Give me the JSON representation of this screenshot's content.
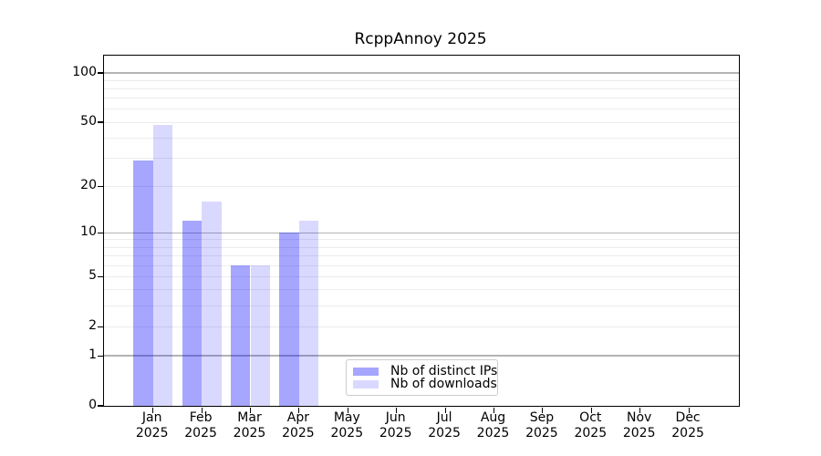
{
  "title": "RcppAnnoy 2025",
  "chart_data": {
    "type": "bar",
    "title": "RcppAnnoy 2025",
    "y_scale": "log1p",
    "ylim": [
      0,
      127.4
    ],
    "categories": [
      "Jan",
      "Feb",
      "Mar",
      "Apr",
      "May",
      "Jun",
      "Jul",
      "Aug",
      "Sep",
      "Oct",
      "Nov",
      "Dec"
    ],
    "category_year": "2025",
    "series": [
      {
        "name": "Nb of distinct IPs",
        "color": "rgba(0,0,255,0.35)",
        "values": [
          29,
          12,
          6,
          10,
          null,
          null,
          null,
          null,
          null,
          null,
          null,
          null
        ]
      },
      {
        "name": "Nb of downloads",
        "color": "rgba(0,0,255,0.15)",
        "values": [
          48,
          16,
          6,
          12,
          null,
          null,
          null,
          null,
          null,
          null,
          null,
          null
        ]
      }
    ],
    "y_axis": {
      "ticks": [
        0,
        1,
        2,
        5,
        10,
        20,
        50,
        100
      ],
      "major_gridlines": [
        1,
        10,
        100
      ],
      "minor_gridlines": [
        2,
        3,
        4,
        5,
        6,
        7,
        8,
        9,
        20,
        30,
        40,
        50,
        60,
        70,
        80,
        90
      ],
      "major_grid_color": "#b3b3b3",
      "minor_grid_color": "#ececec"
    },
    "legend_position": "lower-center",
    "grid": "on"
  }
}
